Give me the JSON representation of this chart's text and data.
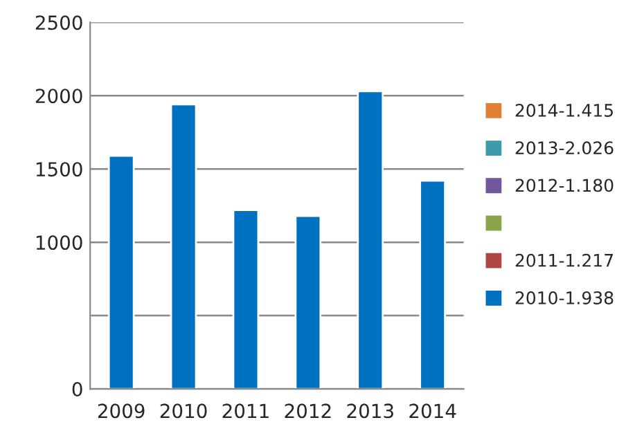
{
  "chart_data": {
    "type": "bar",
    "categories": [
      "2009",
      "2010",
      "2011",
      "2012",
      "2013",
      "2014"
    ],
    "series": [
      {
        "name": "2014-1.415",
        "color": "#e07f35",
        "values": [
          null,
          null,
          null,
          null,
          null,
          null
        ]
      },
      {
        "name": "2013-2.026",
        "color": "#3f9aac",
        "values": [
          null,
          null,
          null,
          null,
          null,
          null
        ]
      },
      {
        "name": "2012-1.180",
        "color": "#70589a",
        "values": [
          null,
          null,
          null,
          null,
          null,
          null
        ]
      },
      {
        "color": "#8aa64b",
        "values": [
          null,
          null,
          null,
          null,
          null,
          null
        ]
      },
      {
        "name": "2011-1.217",
        "color": "#b04643",
        "values": [
          null,
          null,
          null,
          null,
          null,
          null
        ]
      },
      {
        "name": "2010-1.938",
        "color": "#0070c0",
        "values": [
          1590,
          1940,
          1220,
          1180,
          2030,
          1420
        ]
      }
    ],
    "ylim": [
      0,
      2500
    ],
    "yticks": [
      0,
      {
        "value": 500,
        "label": null
      },
      1000,
      1500,
      2000,
      2500
    ],
    "grid": "y",
    "legend": "right"
  }
}
